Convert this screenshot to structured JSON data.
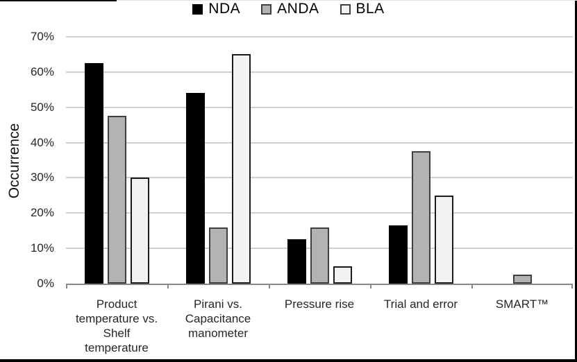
{
  "chart_data": {
    "type": "bar",
    "title": "",
    "ylabel": "Occurrence",
    "xlabel": "",
    "ylim": [
      0,
      70
    ],
    "ytick_step": 10,
    "yticks": [
      "0%",
      "10%",
      "20%",
      "30%",
      "40%",
      "50%",
      "60%",
      "70%"
    ],
    "grid": true,
    "legend_position": "top-center",
    "categories": [
      "Product\ntemperature vs.\nShelf\ntemperature",
      "Pirani vs.\nCapacitance\nmanometer",
      "Pressure rise",
      "Trial and error",
      "SMART™"
    ],
    "series": [
      {
        "name": "NDA",
        "fill": "#000000",
        "border": "#000000",
        "values": [
          62.5,
          54,
          12.5,
          16.5,
          0
        ]
      },
      {
        "name": "ANDA",
        "fill": "#b3b3b3",
        "border": "#3f3f3f",
        "values": [
          47.5,
          16,
          16,
          37.5,
          2.5
        ]
      },
      {
        "name": "BLA",
        "fill": "#f2f2f2",
        "border": "#1a1a1a",
        "values": [
          30,
          65,
          5,
          25,
          0
        ]
      }
    ]
  },
  "colors": {
    "gridline": "#cfcfcf",
    "axis_line": "#898989",
    "text": "#262626"
  }
}
